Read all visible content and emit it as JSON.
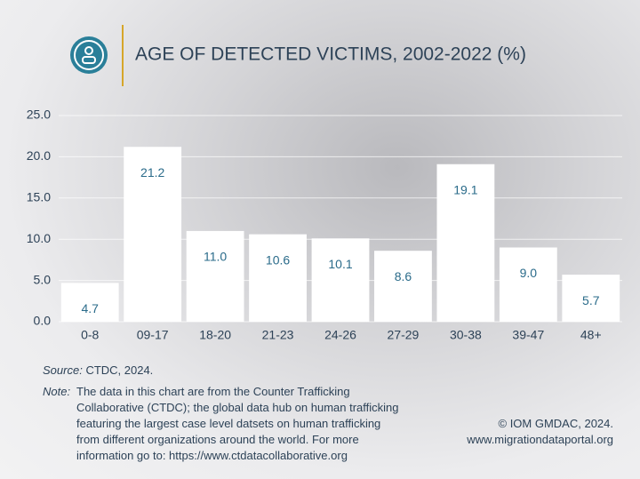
{
  "chart_data": {
    "type": "bar",
    "title": "AGE OF DETECTED VICTIMS, 2002-2022 (%)",
    "categories": [
      "0-8",
      "09-17",
      "18-20",
      "21-23",
      "24-26",
      "27-29",
      "30-38",
      "39-47",
      "48+"
    ],
    "values": [
      4.7,
      21.2,
      11.0,
      10.6,
      10.1,
      8.6,
      19.1,
      9.0,
      5.7
    ],
    "value_labels": [
      "4.7",
      "21.2",
      "11.0",
      "10.6",
      "10.1",
      "8.6",
      "19.1",
      "9.0",
      "5.7"
    ],
    "color": "#ffffff",
    "ylim": [
      0,
      25
    ],
    "yticks": [
      {
        "value": 0,
        "label": "0.0"
      },
      {
        "value": 5,
        "label": "5.0"
      },
      {
        "value": 10,
        "label": "10.0"
      },
      {
        "value": 15,
        "label": "15.0"
      },
      {
        "value": 20,
        "label": "20.0"
      },
      {
        "value": 25,
        "label": "25.0"
      }
    ],
    "grid": true,
    "source_label": "Source:",
    "source": "CTDC, 2024.",
    "note_label": "Note:",
    "note": "The data in this chart are from the Counter Trafficking Collaborative (CTDC); the global data hub on human trafficking featuring the largest case level datsets on human trafficking from different organizations around the world. For more information go to: https://www.ctdatacollaborative.org",
    "credit": "© IOM GMDAC, 2024.",
    "website": "www.migrationdataportal.org"
  }
}
